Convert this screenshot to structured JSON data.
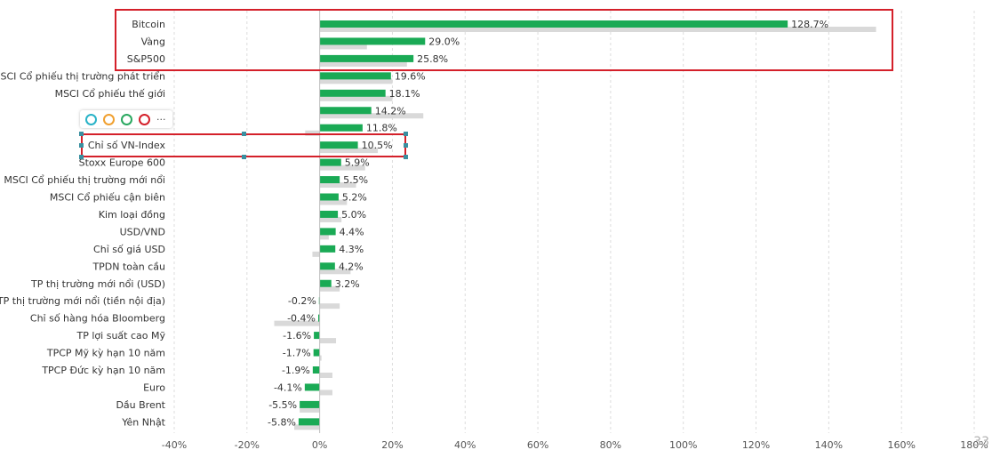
{
  "chart_data": {
    "type": "bar",
    "orientation": "horizontal",
    "categories": [
      "Bitcoin",
      "Vàng",
      "S&P500",
      "MSCI Cổ phiếu thị trường phát triển",
      "MSCI Cổ phiếu thế giới",
      "",
      "",
      "Chỉ số VN-Index",
      "Stoxx Europe 600",
      "MSCI Cổ phiếu thị trường mới nổi",
      "MSCI Cổ phiếu cận biên",
      "Kim loại đồng",
      "USD/VND",
      "Chỉ số giá USD",
      "TPDN toàn cầu",
      "TP thị trường mới nổi (USD)",
      "TP thị trường mới nổi (tiền nội địa)",
      "Chỉ số hàng hóa Bloomberg",
      "TP lợi suất cao Mỹ",
      "TPCP Mỹ kỳ hạn 10 năm",
      "TPCP Đức kỳ hạn 10 năm",
      "Euro",
      "Dầu Brent",
      "Yên Nhật"
    ],
    "value_labels": [
      "128.7%",
      "29.0%",
      "25.8%",
      "19.6%",
      "18.1%",
      "14.2%",
      "11.8%",
      "10.5%",
      "5.9%",
      "5.5%",
      "5.2%",
      "5.0%",
      "4.4%",
      "4.3%",
      "4.2%",
      "3.2%",
      "-0.2%",
      "-0.4%",
      "-1.6%",
      "-1.7%",
      "-1.9%",
      "-4.1%",
      "-5.5%",
      "-5.8%"
    ],
    "series": [
      {
        "values": [
          128.7,
          29.0,
          25.8,
          19.6,
          18.1,
          14.2,
          11.8,
          10.5,
          5.9,
          5.5,
          5.2,
          5.0,
          4.4,
          4.3,
          4.2,
          3.2,
          -0.2,
          -0.4,
          -1.6,
          -1.7,
          -1.9,
          -4.1,
          -5.5,
          -5.8
        ],
        "color": "#1aaa55"
      },
      {
        "values": [
          153,
          13,
          24,
          20,
          20,
          28.5,
          -4,
          16,
          12.5,
          10,
          7.5,
          6,
          2.5,
          -2,
          8.5,
          5.5,
          5.5,
          -12.5,
          4.5,
          0.5,
          3.5,
          3.5,
          -5.5,
          -7
        ],
        "color": "#d9d9d9"
      }
    ],
    "x_ticks": [
      "-40%",
      "-20%",
      "0%",
      "20%",
      "40%",
      "60%",
      "80%",
      "100%",
      "120%",
      "140%",
      "160%",
      "180%"
    ],
    "xlim": [
      -40,
      180
    ],
    "grid": true,
    "title": "",
    "xlabel": "",
    "ylabel": ""
  },
  "colors": {
    "highlight": "#d4202a",
    "handle": "#3a8fa0"
  },
  "toolbar": {
    "circles": [
      {
        "name": "cyan-circle-icon",
        "color": "#2ab3c8"
      },
      {
        "name": "orange-circle-icon",
        "color": "#f0a030"
      },
      {
        "name": "green-circle-icon",
        "color": "#2aa860"
      },
      {
        "name": "red-circle-icon",
        "color": "#d4202a"
      }
    ],
    "more": "···"
  },
  "page_number": "33"
}
